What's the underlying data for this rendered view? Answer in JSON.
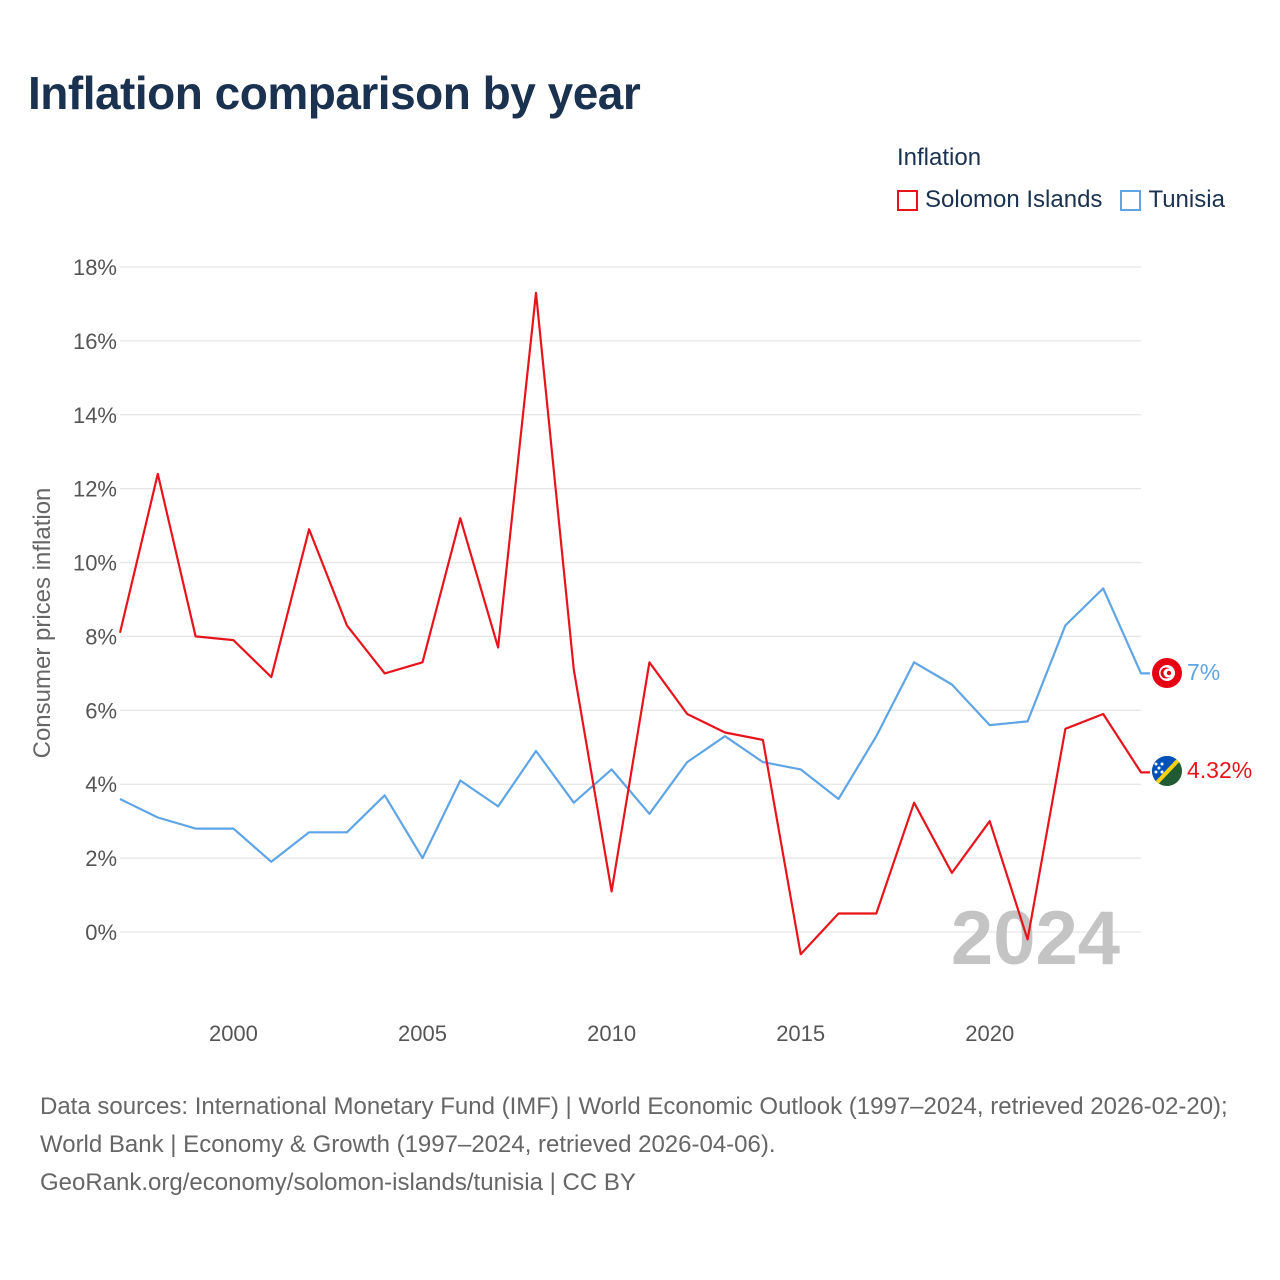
{
  "title": "Inflation comparison by year",
  "legend": {
    "title": "Inflation",
    "items": [
      {
        "label": "Solomon Islands",
        "color": "#e8141c"
      },
      {
        "label": "Tunisia",
        "color": "#5fa5e5"
      }
    ]
  },
  "year_watermark": "2024",
  "end_labels": {
    "tunisia": "7%",
    "solomon": "4.32%"
  },
  "source": {
    "line1": "Data sources: International Monetary Fund (IMF) | World Economic Outlook (1997–2024, retrieved 2026-02-20); World Bank | Economy & Growth (1997–2024, retrieved 2026-04-06).",
    "line2": "GeoRank.org/economy/solomon-islands/tunisia | CC BY"
  },
  "chart_data": {
    "type": "line",
    "title": "Inflation comparison by year",
    "xlabel": "",
    "ylabel": "Consumer prices inflation",
    "xlim": [
      1997,
      2024
    ],
    "ylim": [
      -2,
      18
    ],
    "x_ticks": [
      2000,
      2005,
      2010,
      2015,
      2020
    ],
    "y_ticks": [
      0,
      2,
      4,
      6,
      8,
      10,
      12,
      14,
      16,
      18
    ],
    "y_tick_suffix": "%",
    "x": [
      1997,
      1998,
      1999,
      2000,
      2001,
      2002,
      2003,
      2004,
      2005,
      2006,
      2007,
      2008,
      2009,
      2010,
      2011,
      2012,
      2013,
      2014,
      2015,
      2016,
      2017,
      2018,
      2019,
      2020,
      2021,
      2022,
      2023,
      2024
    ],
    "series": [
      {
        "name": "Solomon Islands",
        "color": "#e8141c",
        "values": [
          8.1,
          12.4,
          8.0,
          7.9,
          6.9,
          10.9,
          8.3,
          7.0,
          7.3,
          11.2,
          7.7,
          17.3,
          7.1,
          1.1,
          7.3,
          5.9,
          5.4,
          5.2,
          -0.6,
          0.5,
          0.5,
          3.5,
          1.6,
          3.0,
          -0.2,
          5.5,
          5.9,
          4.32
        ]
      },
      {
        "name": "Tunisia",
        "color": "#5fa5e5",
        "values": [
          3.6,
          3.1,
          2.8,
          2.8,
          1.9,
          2.7,
          2.7,
          3.7,
          2.0,
          4.1,
          3.4,
          4.9,
          3.5,
          4.4,
          3.2,
          4.6,
          5.3,
          4.6,
          4.4,
          3.6,
          5.3,
          7.3,
          6.7,
          5.6,
          5.7,
          8.3,
          9.3,
          7.0
        ]
      }
    ]
  }
}
